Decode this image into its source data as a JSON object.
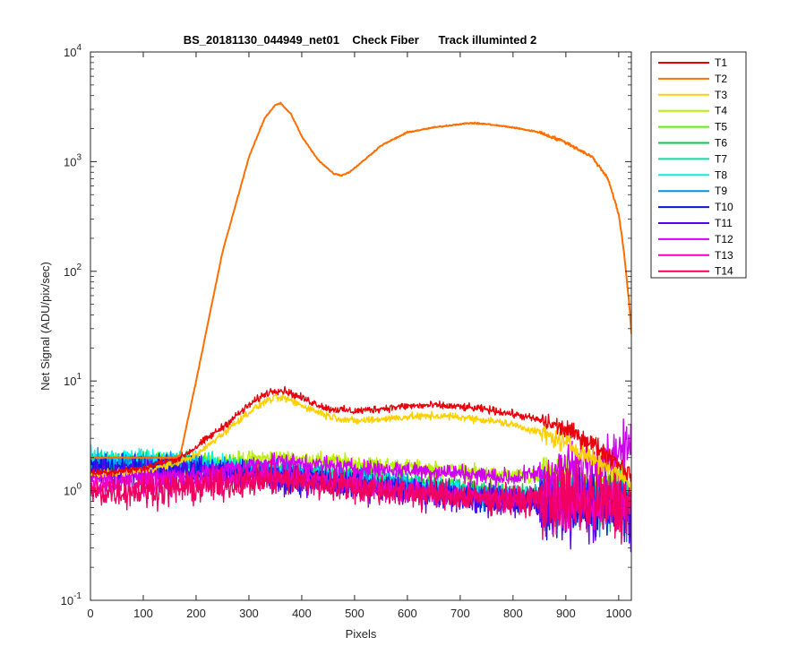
{
  "chart_data": {
    "type": "line",
    "title": "BS_20181130_044949_net01    Check Fiber      Track illuminted 2",
    "xlabel": "Pixels",
    "ylabel": "Net Signal (ADU/pix/sec)",
    "xlim": [
      0,
      1024
    ],
    "ylim": [
      0.1,
      10000
    ],
    "yscale": "log",
    "grid": false,
    "legend_position": "outside-top-right",
    "x_ticks": [
      0,
      100,
      200,
      300,
      400,
      500,
      600,
      700,
      800,
      900,
      1000
    ],
    "y_ticks": [
      {
        "base": "10",
        "exp": "-1",
        "value": 0.1
      },
      {
        "base": "10",
        "exp": "0",
        "value": 1
      },
      {
        "base": "10",
        "exp": "1",
        "value": 10
      },
      {
        "base": "10",
        "exp": "2",
        "value": 100
      },
      {
        "base": "10",
        "exp": "3",
        "value": 1000
      },
      {
        "base": "10",
        "exp": "4",
        "value": 10000
      }
    ],
    "series": [
      {
        "name": "T1",
        "color": "#e8000b",
        "noise": 0.03,
        "x": [
          0,
          50,
          100,
          150,
          170,
          200,
          250,
          300,
          330,
          350,
          370,
          400,
          450,
          500,
          550,
          600,
          650,
          700,
          750,
          800,
          850,
          900,
          950,
          1000,
          1024
        ],
        "y": [
          1.45,
          1.5,
          1.6,
          1.9,
          2.0,
          2.5,
          3.8,
          6.0,
          7.6,
          8.3,
          8.1,
          7.0,
          5.6,
          5.3,
          5.6,
          5.9,
          6.0,
          5.8,
          5.5,
          5.0,
          4.4,
          3.6,
          2.7,
          1.8,
          1.35
        ]
      },
      {
        "name": "T2",
        "color": "#ff6f00",
        "noise": 0.005,
        "x": [
          0,
          160,
          170,
          200,
          250,
          300,
          330,
          350,
          360,
          380,
          400,
          430,
          460,
          475,
          490,
          520,
          550,
          600,
          650,
          700,
          720,
          750,
          800,
          850,
          900,
          950,
          980,
          1000,
          1010,
          1020,
          1024
        ],
        "y": [
          2.0,
          2.0,
          2.1,
          10,
          150,
          1100,
          2500,
          3300,
          3400,
          2700,
          1700,
          1050,
          780,
          750,
          800,
          1050,
          1400,
          1850,
          2050,
          2200,
          2250,
          2200,
          2050,
          1850,
          1500,
          1100,
          700,
          330,
          150,
          50,
          27
        ]
      },
      {
        "name": "T3",
        "color": "#ffd000",
        "noise": 0.03,
        "x": [
          0,
          50,
          100,
          150,
          200,
          250,
          300,
          330,
          350,
          370,
          400,
          450,
          500,
          550,
          600,
          650,
          700,
          750,
          800,
          850,
          900,
          950,
          1000,
          1024
        ],
        "y": [
          1.4,
          1.45,
          1.55,
          1.7,
          2.1,
          3.3,
          5.2,
          6.5,
          7.0,
          6.9,
          6.0,
          4.8,
          4.3,
          4.5,
          4.7,
          4.8,
          4.7,
          4.4,
          4.0,
          3.4,
          2.7,
          2.0,
          1.45,
          1.15
        ]
      },
      {
        "name": "T4",
        "color": "#b8f000",
        "noise": 0.06,
        "x": [
          0,
          200,
          300,
          350,
          400,
          500,
          600,
          700,
          800,
          900,
          1000,
          1024
        ],
        "y": [
          1.7,
          1.8,
          1.95,
          2.0,
          1.95,
          1.8,
          1.65,
          1.5,
          1.35,
          1.25,
          1.15,
          1.1
        ]
      },
      {
        "name": "T5",
        "color": "#5ef000",
        "noise": 0.07,
        "x": [
          0,
          200,
          300,
          350,
          400,
          500,
          600,
          700,
          800,
          900,
          1000,
          1024
        ],
        "y": [
          1.85,
          1.8,
          1.6,
          1.55,
          1.5,
          1.35,
          1.2,
          1.05,
          0.95,
          0.85,
          0.8,
          0.75
        ]
      },
      {
        "name": "T6",
        "color": "#00d040",
        "noise": 0.08,
        "x": [
          0,
          200,
          300,
          350,
          400,
          500,
          600,
          700,
          800,
          900,
          1000,
          1024
        ],
        "y": [
          1.8,
          1.75,
          1.55,
          1.5,
          1.45,
          1.3,
          1.15,
          1.0,
          0.9,
          0.85,
          0.8,
          0.75
        ]
      },
      {
        "name": "T7",
        "color": "#00e0a0",
        "noise": 0.08,
        "x": [
          0,
          200,
          300,
          350,
          400,
          500,
          600,
          700,
          800,
          900,
          1000,
          1024
        ],
        "y": [
          1.9,
          1.8,
          1.6,
          1.5,
          1.45,
          1.3,
          1.15,
          1.0,
          0.9,
          0.85,
          0.8,
          0.75
        ]
      },
      {
        "name": "T8",
        "color": "#00f0f0",
        "noise": 0.08,
        "x": [
          0,
          200,
          300,
          350,
          400,
          500,
          600,
          700,
          800,
          900,
          1000,
          1024
        ],
        "y": [
          1.95,
          1.85,
          1.6,
          1.5,
          1.45,
          1.3,
          1.15,
          1.0,
          0.9,
          0.85,
          0.8,
          0.75
        ]
      },
      {
        "name": "T9",
        "color": "#0090f0",
        "noise": 0.09,
        "x": [
          0,
          200,
          300,
          350,
          400,
          500,
          600,
          700,
          800,
          900,
          1000,
          1024
        ],
        "y": [
          1.75,
          1.7,
          1.5,
          1.45,
          1.4,
          1.25,
          1.1,
          0.95,
          0.85,
          0.8,
          0.75,
          0.7
        ]
      },
      {
        "name": "T10",
        "color": "#0018d8",
        "noise": 0.1,
        "x": [
          0,
          200,
          300,
          350,
          400,
          500,
          600,
          700,
          800,
          900,
          1000,
          1024
        ],
        "y": [
          1.6,
          1.55,
          1.4,
          1.35,
          1.3,
          1.15,
          1.0,
          0.9,
          0.8,
          0.75,
          0.72,
          0.7
        ]
      },
      {
        "name": "T11",
        "color": "#5a00f0",
        "noise": 0.11,
        "x": [
          0,
          200,
          300,
          350,
          400,
          500,
          600,
          700,
          800,
          900,
          1000,
          1024
        ],
        "y": [
          1.5,
          1.45,
          1.35,
          1.3,
          1.25,
          1.1,
          0.98,
          0.88,
          0.8,
          0.75,
          0.72,
          0.7
        ]
      },
      {
        "name": "T12",
        "color": "#d000f0",
        "noise": 0.07,
        "x": [
          0,
          200,
          300,
          350,
          400,
          500,
          600,
          700,
          800,
          900,
          950,
          1000,
          1024
        ],
        "y": [
          1.3,
          1.4,
          1.7,
          1.85,
          1.8,
          1.6,
          1.55,
          1.45,
          1.3,
          1.6,
          1.9,
          2.3,
          2.6
        ]
      },
      {
        "name": "T13",
        "color": "#f000c0",
        "noise": 0.09,
        "x": [
          0,
          200,
          300,
          350,
          400,
          500,
          600,
          700,
          800,
          900,
          1000,
          1024
        ],
        "y": [
          1.15,
          1.2,
          1.3,
          1.35,
          1.3,
          1.15,
          1.0,
          0.9,
          0.85,
          0.82,
          0.8,
          0.8
        ]
      },
      {
        "name": "T14",
        "color": "#f00060",
        "noise": 0.12,
        "x": [
          0,
          200,
          300,
          350,
          400,
          500,
          600,
          700,
          800,
          900,
          1000,
          1024
        ],
        "y": [
          0.95,
          1.05,
          1.2,
          1.25,
          1.2,
          1.05,
          0.95,
          0.88,
          0.82,
          0.8,
          0.78,
          0.78
        ]
      }
    ]
  }
}
